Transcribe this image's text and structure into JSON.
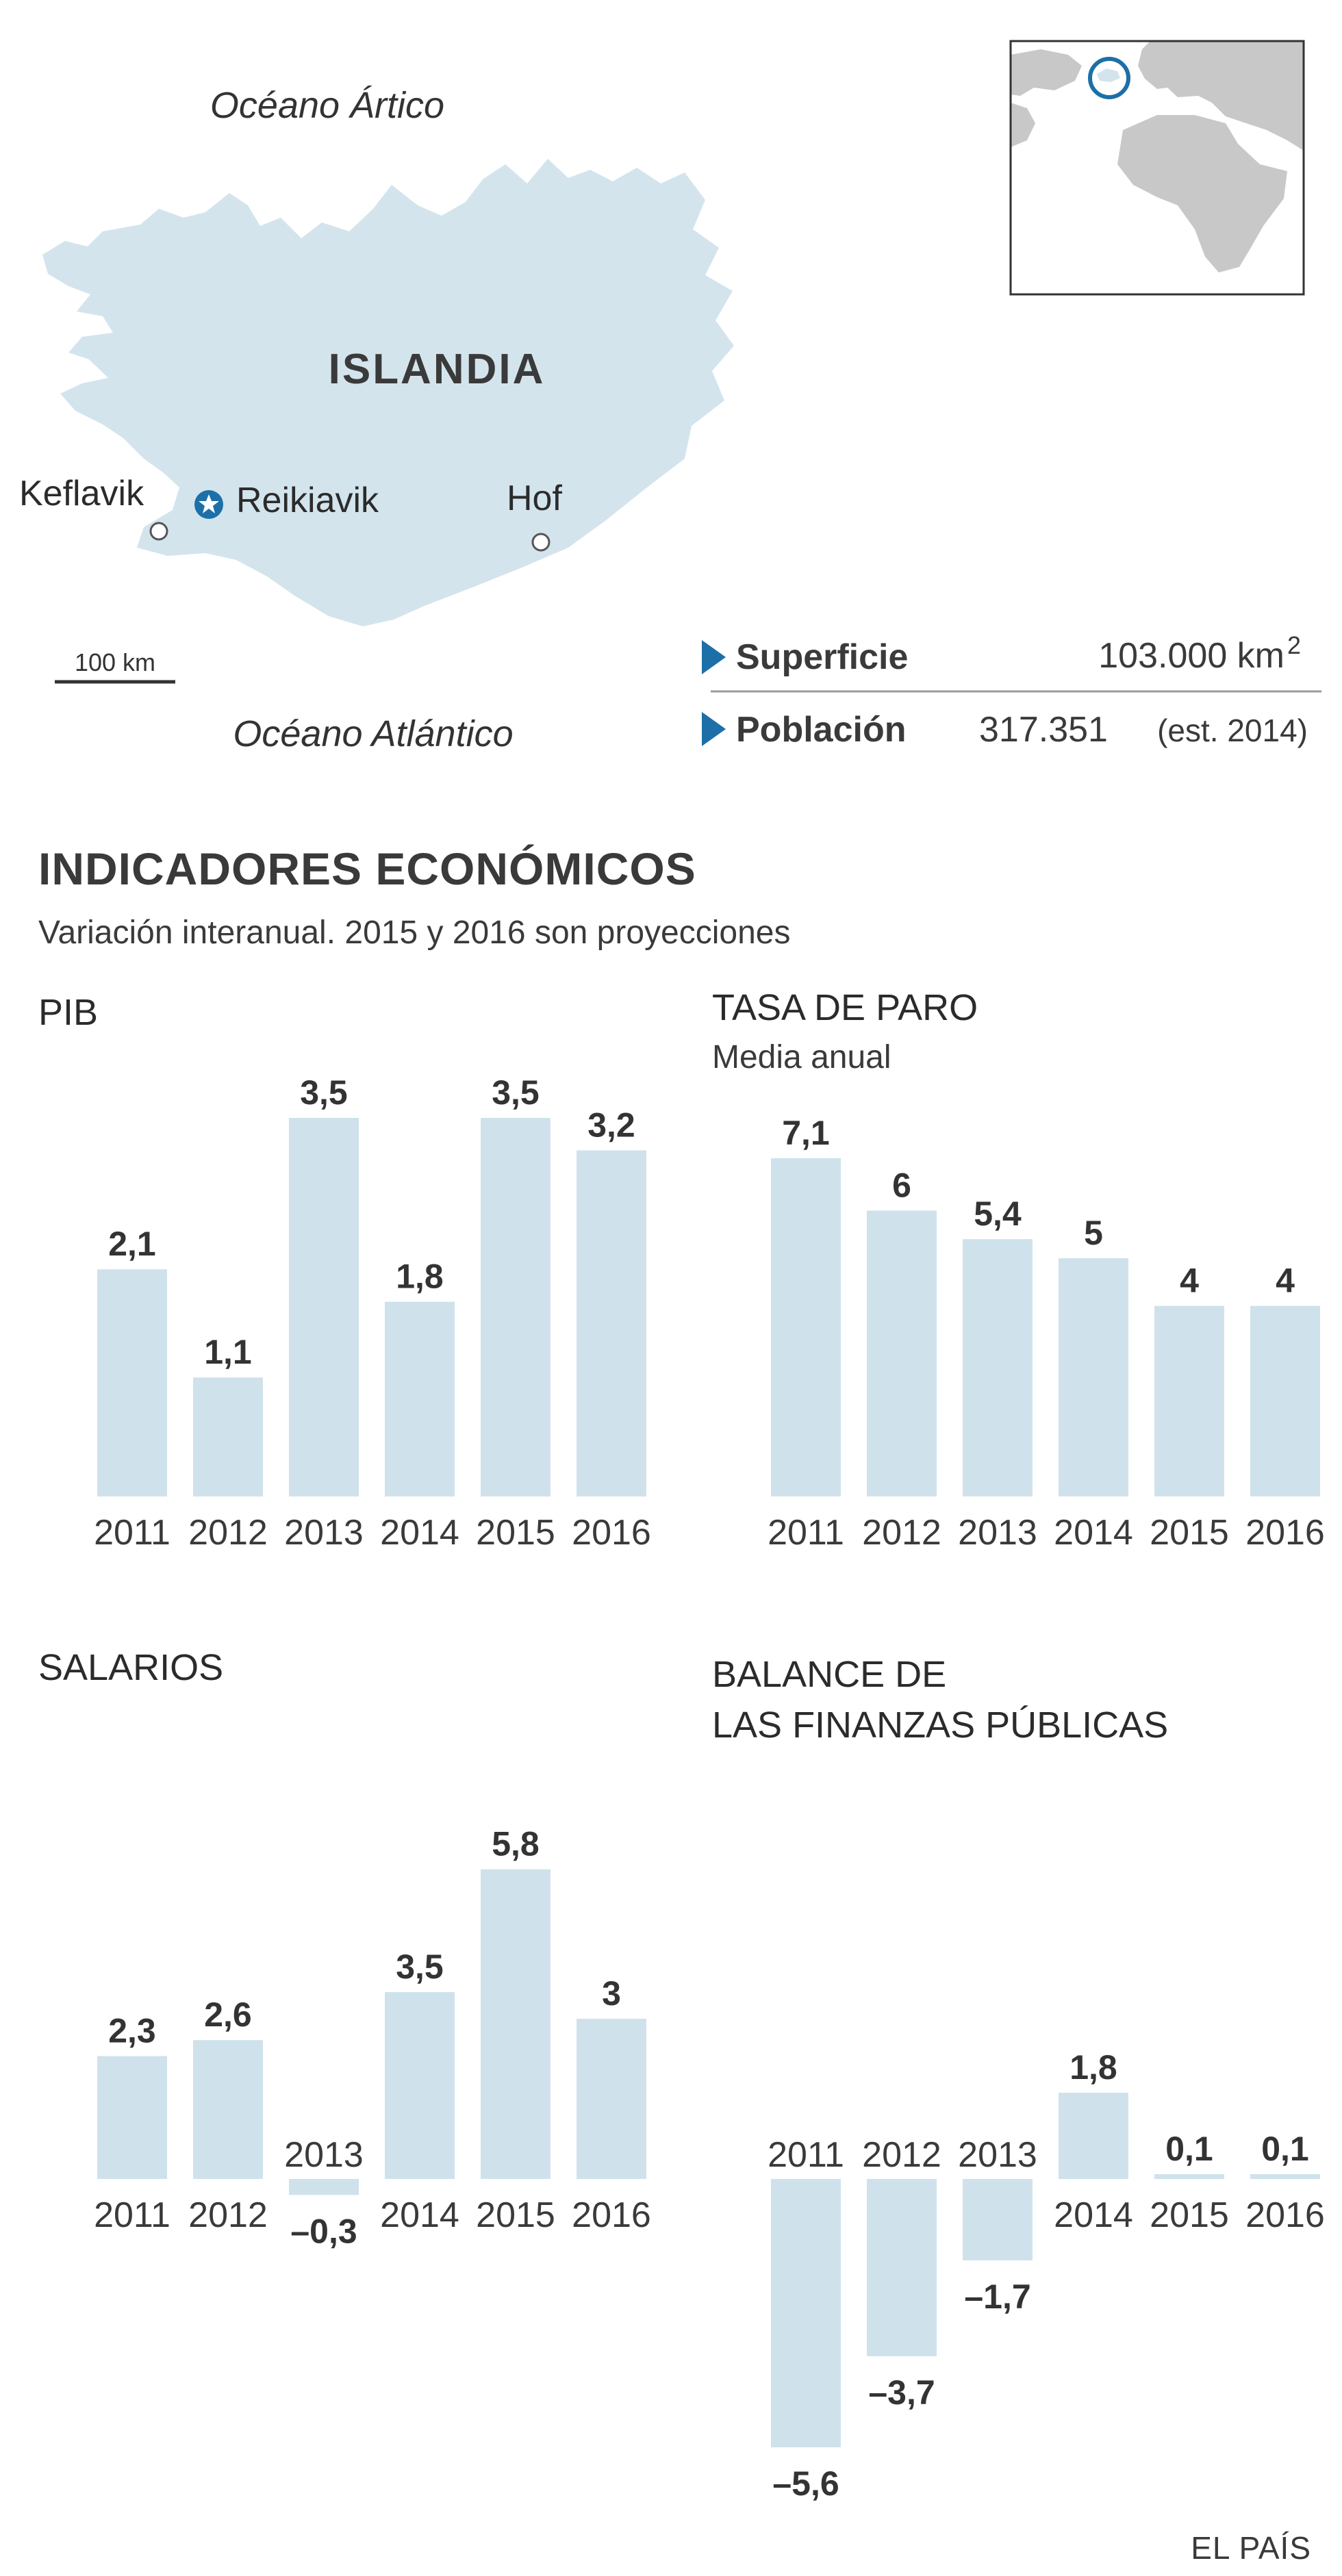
{
  "colors": {
    "bar": "#cfe2ec",
    "accent": "#1d6fa8",
    "iceland": "#d3e4ed",
    "world_land": "#c8c8c8",
    "text": "#333333"
  },
  "map": {
    "ocean_north": "Océano Ártico",
    "ocean_south": "Océano Atlántico",
    "country": "ISLANDIA",
    "cities": [
      "Keflavik",
      "Reikiavik",
      "Hof"
    ],
    "capital_marker": "star-circle-icon",
    "scale_label": "100 km"
  },
  "facts": {
    "marker_icon": "triangle-right-icon",
    "area_label": "Superficie",
    "area_value": "103.000 km",
    "area_unit_sup": "2",
    "population_label": "Población",
    "population_value": "317.351",
    "population_note": "(est. 2014)"
  },
  "section": {
    "title": "INDICADORES ECONÓMICOS",
    "subtitle": "Variación interanual. 2015 y 2016 son proyecciones"
  },
  "chart_data": [
    {
      "type": "bar",
      "title": "PIB",
      "subtitle": "",
      "categories": [
        "2011",
        "2012",
        "2013",
        "2014",
        "2015",
        "2016"
      ],
      "values": [
        2.1,
        1.1,
        3.5,
        1.8,
        3.5,
        3.2
      ],
      "value_labels": [
        "2,1",
        "1,1",
        "3,5",
        "1,8",
        "3,5",
        "3,2"
      ]
    },
    {
      "type": "bar",
      "title": "TASA DE PARO",
      "subtitle": "Media anual",
      "categories": [
        "2011",
        "2012",
        "2013",
        "2014",
        "2015",
        "2016"
      ],
      "values": [
        7.1,
        6,
        5.4,
        5,
        4,
        4
      ],
      "value_labels": [
        "7,1",
        "6",
        "5,4",
        "5",
        "4",
        "4"
      ]
    },
    {
      "type": "bar",
      "title": "SALARIOS",
      "subtitle": "",
      "categories": [
        "2011",
        "2012",
        "2013",
        "2014",
        "2015",
        "2016"
      ],
      "values": [
        2.3,
        2.6,
        -0.3,
        3.5,
        5.8,
        3
      ],
      "value_labels": [
        "2,3",
        "2,6",
        "–0,3",
        "3,5",
        "5,8",
        "3"
      ]
    },
    {
      "type": "bar",
      "title": "BALANCE DE",
      "title_line2": "LAS FINANZAS PÚBLICAS",
      "subtitle": "",
      "categories": [
        "2011",
        "2012",
        "2013",
        "2014",
        "2015",
        "2016"
      ],
      "values": [
        -5.6,
        -3.7,
        -1.7,
        1.8,
        0.1,
        0.1
      ],
      "value_labels": [
        "–5,6",
        "–3,7",
        "–1,7",
        "1,8",
        "0,1",
        "0,1"
      ]
    }
  ],
  "credit": "EL PAÍS"
}
